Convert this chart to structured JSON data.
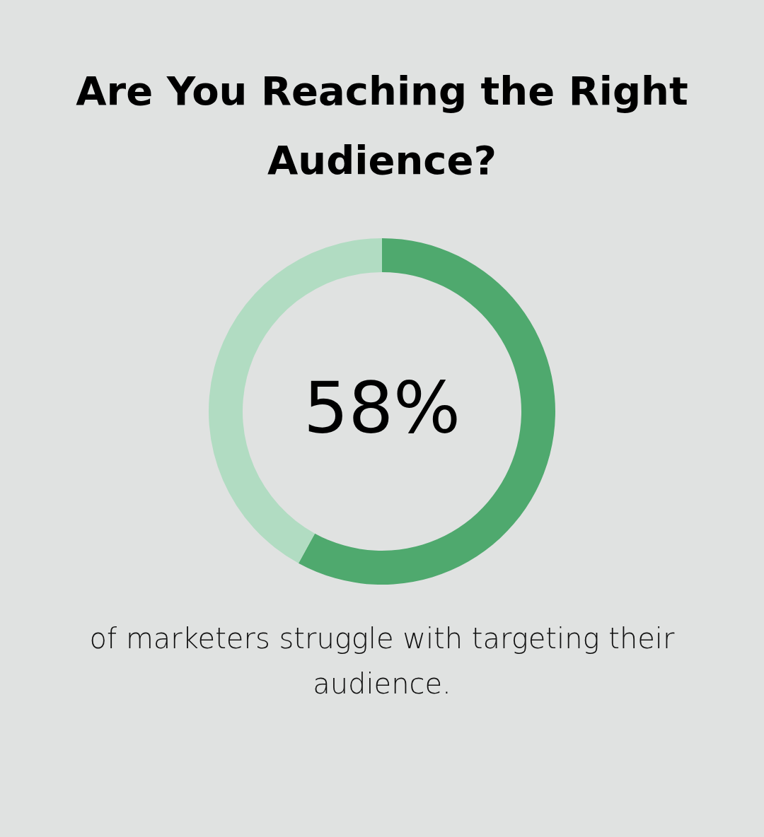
{
  "chart_data": {
    "type": "donut",
    "title": "Are You Reaching the Right Audience?",
    "categories": [
      null,
      null
    ],
    "values": [
      58,
      42
    ],
    "colors": [
      "#4fa96e",
      "#b1dcc2"
    ],
    "value_labels": [
      "58%",
      null
    ],
    "annotations": [
      "of marketers struggle with targeting their audience."
    ]
  }
}
